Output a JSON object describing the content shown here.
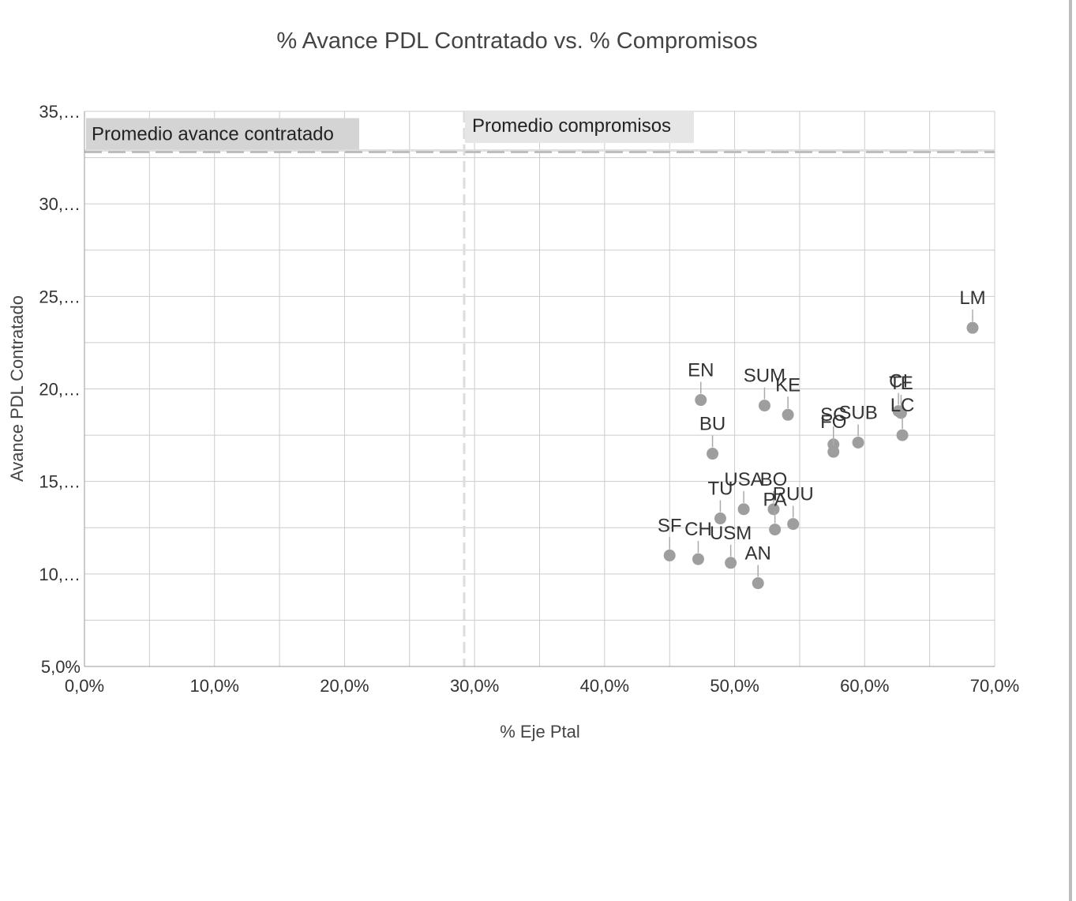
{
  "chart_data": {
    "type": "scatter",
    "title": "% Avance PDL Contratado vs. % Compromisos",
    "xlabel": "% Eje Ptal",
    "ylabel": "Avance PDL Contratado",
    "xlim": [
      0,
      70
    ],
    "ylim": [
      5,
      35
    ],
    "x_ticks": [
      "0,0%",
      "10,0%",
      "20,0%",
      "30,0%",
      "40,0%",
      "50,0%",
      "60,0%",
      "70,0%"
    ],
    "x_tick_values": [
      0,
      10,
      20,
      30,
      40,
      50,
      60,
      70
    ],
    "y_ticks": [
      "5,0%",
      "10,…",
      "15,…",
      "20,…",
      "25,…",
      "30,…",
      "35,…"
    ],
    "y_tick_values": [
      5,
      10,
      15,
      20,
      25,
      30,
      35
    ],
    "grid": true,
    "reference_lines": [
      {
        "label": "Promedio avance contratado",
        "axis": "y",
        "value": 32.8
      },
      {
        "label": "Promedio compromisos",
        "axis": "x",
        "value": 29.2
      }
    ],
    "points": [
      {
        "label": "LM",
        "x": 68.3,
        "y": 23.3
      },
      {
        "label": "EN",
        "x": 47.4,
        "y": 19.4
      },
      {
        "label": "SUM",
        "x": 52.3,
        "y": 19.1
      },
      {
        "label": "KE",
        "x": 54.1,
        "y": 18.6
      },
      {
        "label": "CI",
        "x": 62.6,
        "y": 18.8
      },
      {
        "label": "TE",
        "x": 62.8,
        "y": 18.7
      },
      {
        "label": "LC",
        "x": 62.9,
        "y": 17.5
      },
      {
        "label": "SC",
        "x": 57.6,
        "y": 17.0
      },
      {
        "label": "FO",
        "x": 57.6,
        "y": 16.6
      },
      {
        "label": "SUB",
        "x": 59.5,
        "y": 17.1
      },
      {
        "label": "BU",
        "x": 48.3,
        "y": 16.5
      },
      {
        "label": "USA",
        "x": 50.7,
        "y": 13.5
      },
      {
        "label": "BO",
        "x": 53.0,
        "y": 13.5
      },
      {
        "label": "TU",
        "x": 48.9,
        "y": 13.0
      },
      {
        "label": "PA",
        "x": 53.1,
        "y": 12.4
      },
      {
        "label": "RUU",
        "x": 54.5,
        "y": 12.7
      },
      {
        "label": "SF",
        "x": 45.0,
        "y": 11.0
      },
      {
        "label": "CH",
        "x": 47.2,
        "y": 10.8
      },
      {
        "label": "USM",
        "x": 49.7,
        "y": 10.6
      },
      {
        "label": "AN",
        "x": 51.8,
        "y": 9.5
      }
    ],
    "colors": {
      "points": "#9e9e9e",
      "grid": "#cccccc",
      "reference_line": "#bdbdbd",
      "text": "#333333"
    }
  }
}
